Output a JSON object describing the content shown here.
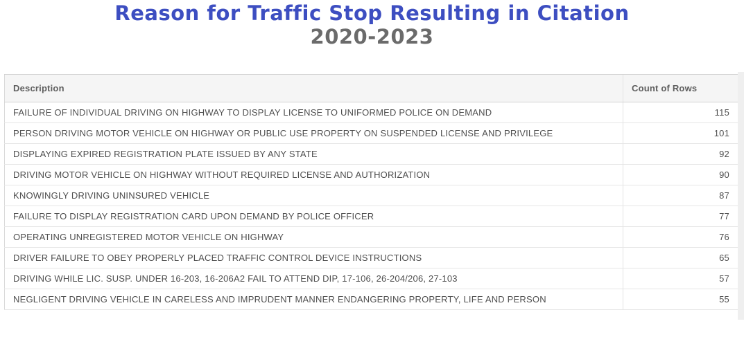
{
  "chart_data": {
    "type": "table",
    "title": "Reason for Traffic Stop Resulting in Citation",
    "subtitle": "2020-2023",
    "columns": [
      "Description",
      "Count of Rows"
    ],
    "rows": [
      [
        "FAILURE OF INDIVIDUAL DRIVING ON HIGHWAY TO DISPLAY LICENSE TO UNIFORMED POLICE ON DEMAND",
        115
      ],
      [
        "PERSON DRIVING MOTOR VEHICLE ON HIGHWAY OR PUBLIC USE PROPERTY ON SUSPENDED LICENSE AND PRIVILEGE",
        101
      ],
      [
        "DISPLAYING EXPIRED REGISTRATION PLATE ISSUED BY ANY STATE",
        92
      ],
      [
        "DRIVING MOTOR VEHICLE ON HIGHWAY WITHOUT REQUIRED LICENSE AND AUTHORIZATION",
        90
      ],
      [
        "KNOWINGLY DRIVING UNINSURED VEHICLE",
        87
      ],
      [
        "FAILURE TO DISPLAY REGISTRATION CARD UPON DEMAND BY POLICE OFFICER",
        77
      ],
      [
        "OPERATING UNREGISTERED MOTOR VEHICLE ON HIGHWAY",
        76
      ],
      [
        "DRIVER FAILURE TO OBEY PROPERLY PLACED TRAFFIC CONTROL DEVICE INSTRUCTIONS",
        65
      ],
      [
        "DRIVING WHILE LIC. SUSP. UNDER 16-203, 16-206A2 FAIL TO ATTEND DIP, 17-106, 26-204/206, 27-103",
        57
      ],
      [
        "NEGLIGENT DRIVING VEHICLE IN CARELESS AND IMPRUDENT MANNER ENDANGERING PROPERTY, LIFE AND PERSON",
        55
      ]
    ]
  },
  "colors": {
    "title": "#3d4ec1",
    "subtitle": "#6b6b6b",
    "header_background": "#f5f5f5"
  }
}
